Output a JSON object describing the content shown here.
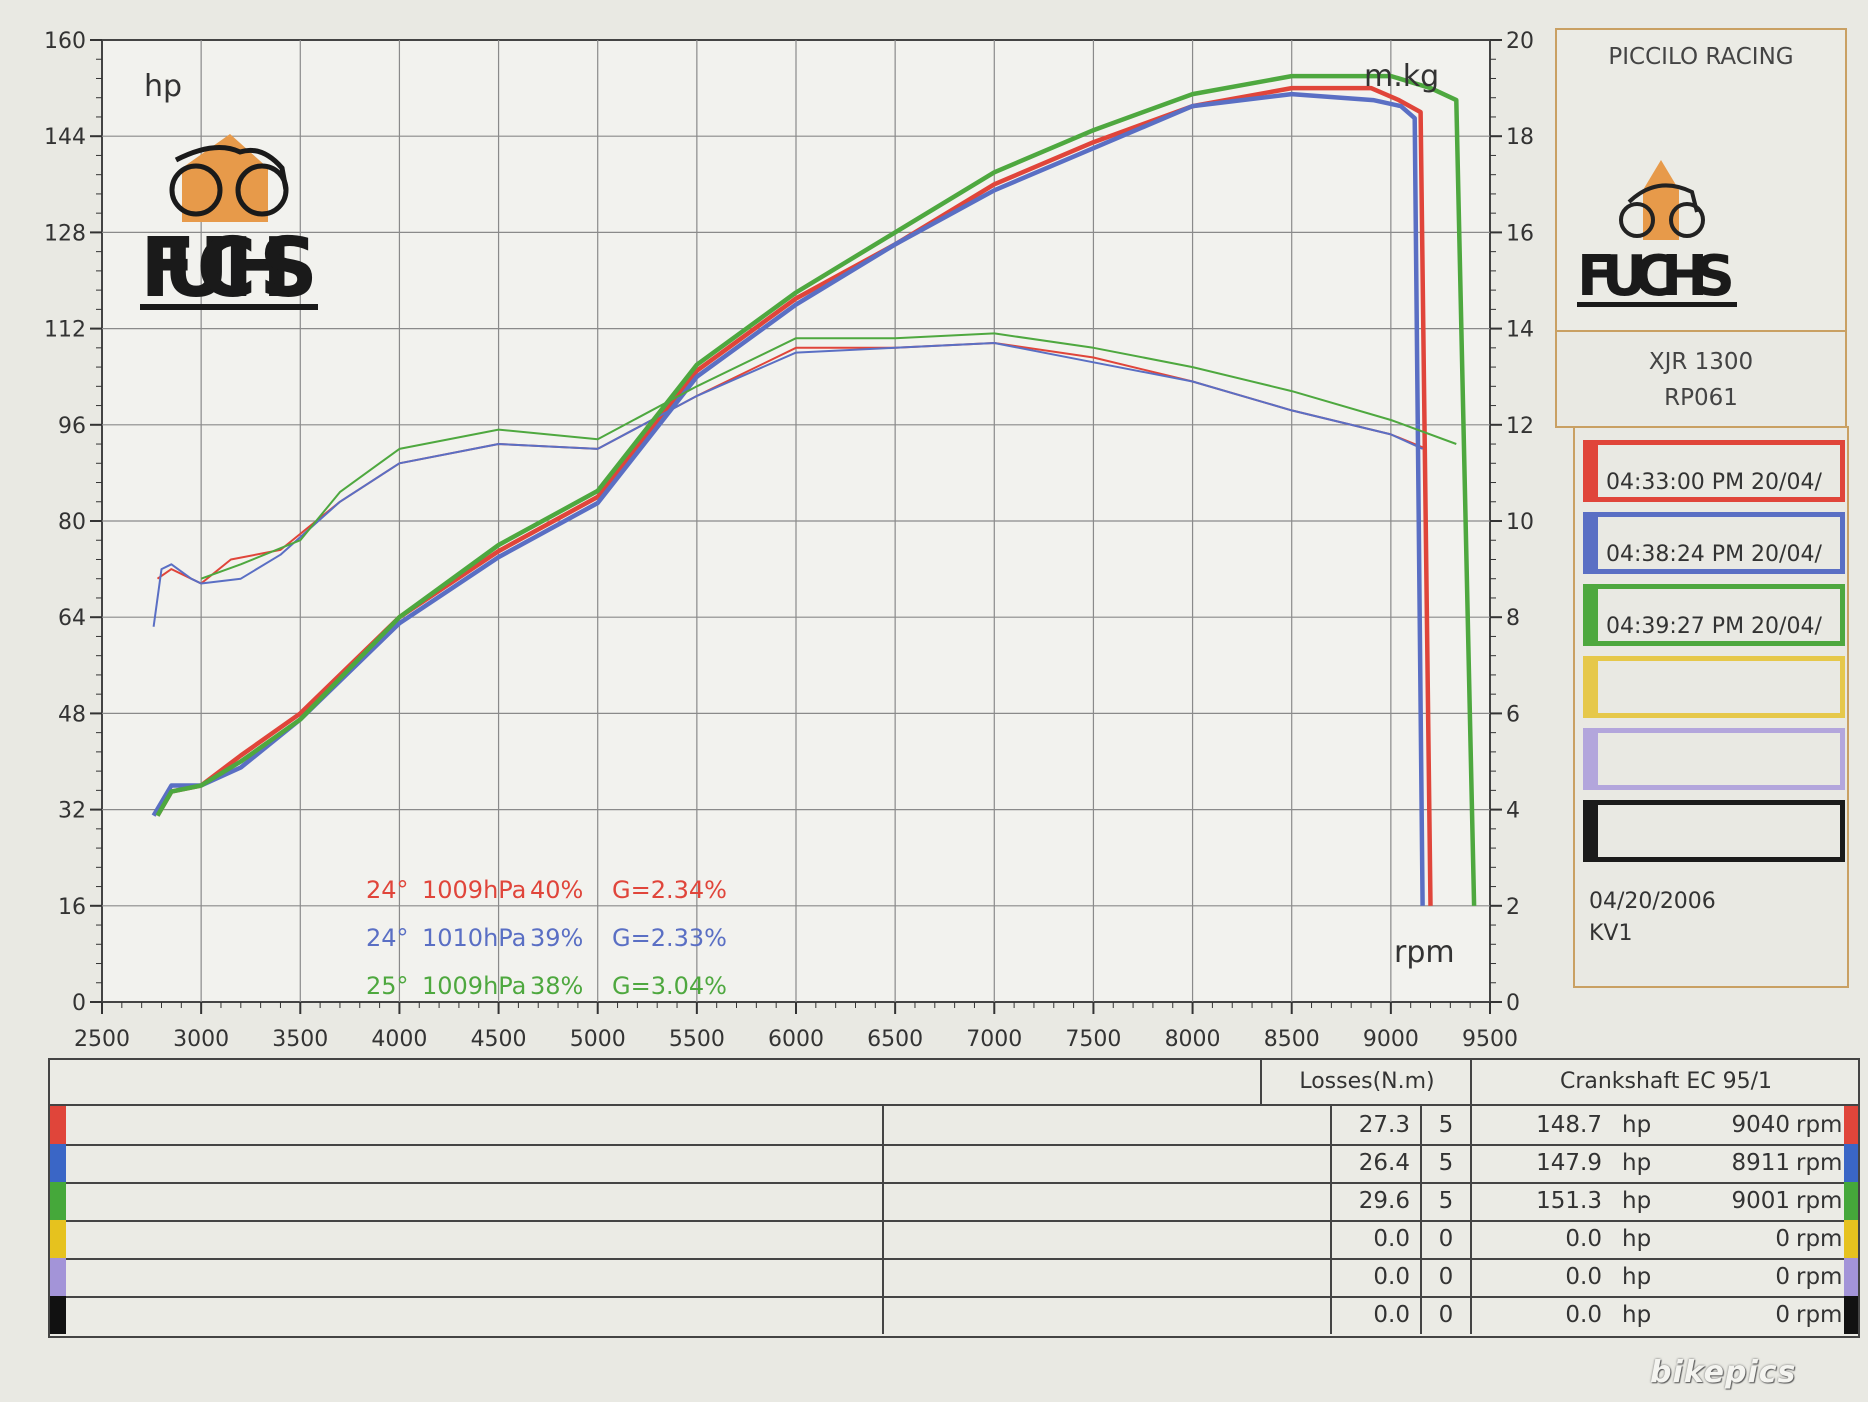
{
  "chart_data": {
    "type": "line",
    "xlabel": "rpm",
    "ylabel": "hp",
    "y2label": "m.kg",
    "xlim": [
      2500,
      9500
    ],
    "ylim": [
      0,
      160
    ],
    "y2lim": [
      0,
      20
    ],
    "x_ticks": [
      "2500",
      "3000",
      "3500",
      "4000",
      "4500",
      "5000",
      "5500",
      "6000",
      "6500",
      "7000",
      "7500",
      "8000",
      "8500",
      "9000",
      "9500"
    ],
    "y_ticks": [
      "0",
      "16",
      "32",
      "48",
      "64",
      "80",
      "96",
      "112",
      "128",
      "144",
      "160"
    ],
    "y2_ticks": [
      "0",
      "2",
      "4",
      "6",
      "8",
      "10",
      "12",
      "14",
      "16",
      "18",
      "20"
    ],
    "grid": true,
    "series": [
      {
        "name": "04:33:00 PM  20/04/",
        "color": "#e0453a",
        "power_hp": [
          [
            2780,
            31
          ],
          [
            2850,
            35
          ],
          [
            3000,
            36
          ],
          [
            3200,
            41
          ],
          [
            3500,
            48
          ],
          [
            4000,
            64
          ],
          [
            4500,
            75
          ],
          [
            5000,
            84
          ],
          [
            5500,
            105
          ],
          [
            6000,
            117
          ],
          [
            6500,
            126
          ],
          [
            7000,
            136
          ],
          [
            7500,
            143
          ],
          [
            8000,
            149
          ],
          [
            8500,
            152
          ],
          [
            8900,
            152
          ],
          [
            9040,
            150
          ],
          [
            9150,
            148
          ],
          [
            9200,
            16
          ]
        ],
        "torque_mkg": [
          [
            2780,
            8.8
          ],
          [
            2850,
            9.0
          ],
          [
            2950,
            8.8
          ],
          [
            3000,
            8.7
          ],
          [
            3150,
            9.2
          ],
          [
            3400,
            9.4
          ],
          [
            3700,
            10.4
          ],
          [
            4000,
            11.2
          ],
          [
            4500,
            11.6
          ],
          [
            5000,
            11.5
          ],
          [
            5500,
            12.6
          ],
          [
            6000,
            13.6
          ],
          [
            6500,
            13.6
          ],
          [
            7000,
            13.7
          ],
          [
            7500,
            13.4
          ],
          [
            8000,
            12.9
          ],
          [
            8500,
            12.3
          ],
          [
            9000,
            11.8
          ],
          [
            9180,
            11.5
          ]
        ]
      },
      {
        "name": "04:38:24 PM  20/04/",
        "color": "#5a6fc4",
        "power_hp": [
          [
            2760,
            31
          ],
          [
            2850,
            36
          ],
          [
            3000,
            36
          ],
          [
            3200,
            39
          ],
          [
            3500,
            47
          ],
          [
            4000,
            63
          ],
          [
            4500,
            74
          ],
          [
            5000,
            83
          ],
          [
            5500,
            104
          ],
          [
            6000,
            116
          ],
          [
            6500,
            126
          ],
          [
            7000,
            135
          ],
          [
            7500,
            142
          ],
          [
            8000,
            149
          ],
          [
            8500,
            151
          ],
          [
            8911,
            150
          ],
          [
            9050,
            149
          ],
          [
            9120,
            147
          ],
          [
            9160,
            16
          ]
        ],
        "torque_mkg": [
          [
            2760,
            7.8
          ],
          [
            2800,
            9.0
          ],
          [
            2850,
            9.1
          ],
          [
            2950,
            8.8
          ],
          [
            3000,
            8.7
          ],
          [
            3200,
            8.8
          ],
          [
            3400,
            9.3
          ],
          [
            3700,
            10.4
          ],
          [
            4000,
            11.2
          ],
          [
            4500,
            11.6
          ],
          [
            5000,
            11.5
          ],
          [
            5500,
            12.6
          ],
          [
            6000,
            13.5
          ],
          [
            6500,
            13.6
          ],
          [
            7000,
            13.7
          ],
          [
            7500,
            13.3
          ],
          [
            8000,
            12.9
          ],
          [
            8500,
            12.3
          ],
          [
            9000,
            11.8
          ],
          [
            9160,
            11.5
          ]
        ]
      },
      {
        "name": "04:39:27 PM  20/04/",
        "color": "#4ea83f",
        "power_hp": [
          [
            2780,
            31
          ],
          [
            2850,
            35
          ],
          [
            3000,
            36
          ],
          [
            3200,
            40
          ],
          [
            3500,
            47
          ],
          [
            4000,
            64
          ],
          [
            4500,
            76
          ],
          [
            5000,
            85
          ],
          [
            5500,
            106
          ],
          [
            6000,
            118
          ],
          [
            6500,
            128
          ],
          [
            7000,
            138
          ],
          [
            7500,
            145
          ],
          [
            8000,
            151
          ],
          [
            8500,
            154
          ],
          [
            9001,
            154
          ],
          [
            9200,
            152
          ],
          [
            9330,
            150
          ],
          [
            9420,
            16
          ]
        ],
        "torque_mkg": [
          [
            3000,
            8.8
          ],
          [
            3200,
            9.1
          ],
          [
            3500,
            9.6
          ],
          [
            3700,
            10.6
          ],
          [
            4000,
            11.5
          ],
          [
            4500,
            11.9
          ],
          [
            5000,
            11.7
          ],
          [
            5500,
            12.8
          ],
          [
            6000,
            13.8
          ],
          [
            6500,
            13.8
          ],
          [
            7000,
            13.9
          ],
          [
            7500,
            13.6
          ],
          [
            8000,
            13.2
          ],
          [
            8500,
            12.7
          ],
          [
            9000,
            12.1
          ],
          [
            9330,
            11.6
          ]
        ]
      }
    ],
    "conditions": [
      {
        "temp": "24°",
        "pressure": "1009hPa",
        "humidity": "40%",
        "g": "G=2.34%",
        "color": "#e0453a"
      },
      {
        "temp": "24°",
        "pressure": "1010hPa",
        "humidity": "39%",
        "g": "G=2.33%",
        "color": "#5a6fc4"
      },
      {
        "temp": "25°",
        "pressure": "1009hPa",
        "humidity": "38%",
        "g": "G=3.04%",
        "color": "#4ea83f"
      }
    ]
  },
  "logo_text": "FUCHS",
  "panel": {
    "brand": "PICCILO RACING",
    "model": "XJR 1300",
    "code": "RP061",
    "date": "04/20/2006",
    "operator": "KV1",
    "runs": [
      {
        "label": "04:33:00 PM  20/04/",
        "color": "#e0453a"
      },
      {
        "label": "04:38:24 PM  20/04/",
        "color": "#5a6fc4"
      },
      {
        "label": "04:39:27 PM  20/04/",
        "color": "#4ea83f"
      },
      {
        "label": "",
        "color": "#e6c84a"
      },
      {
        "label": "",
        "color": "#b3a6dc"
      },
      {
        "label": "",
        "color": "#1b1b1b"
      }
    ]
  },
  "table": {
    "losses_header": "Losses(N.m)",
    "crank_header": "Crankshaft EC 95/1",
    "hp_unit": "hp",
    "rpm_unit": "rpm",
    "rows": [
      {
        "color": "#e0453a",
        "loss": "27.3",
        "n": "5",
        "hp": "148.7",
        "rpm": "9040"
      },
      {
        "color": "#3a66c6",
        "loss": "26.4",
        "n": "5",
        "hp": "147.9",
        "rpm": "8911"
      },
      {
        "color": "#45a83a",
        "loss": "29.6",
        "n": "5",
        "hp": "151.3",
        "rpm": "9001"
      },
      {
        "color": "#e6c21e",
        "loss": "0.0",
        "n": "0",
        "hp": "0.0",
        "rpm": "0"
      },
      {
        "color": "#a394d8",
        "loss": "0.0",
        "n": "0",
        "hp": "0.0",
        "rpm": "0"
      },
      {
        "color": "#111111",
        "loss": "0.0",
        "n": "0",
        "hp": "0.0",
        "rpm": "0"
      }
    ]
  },
  "watermark": "bikepics"
}
